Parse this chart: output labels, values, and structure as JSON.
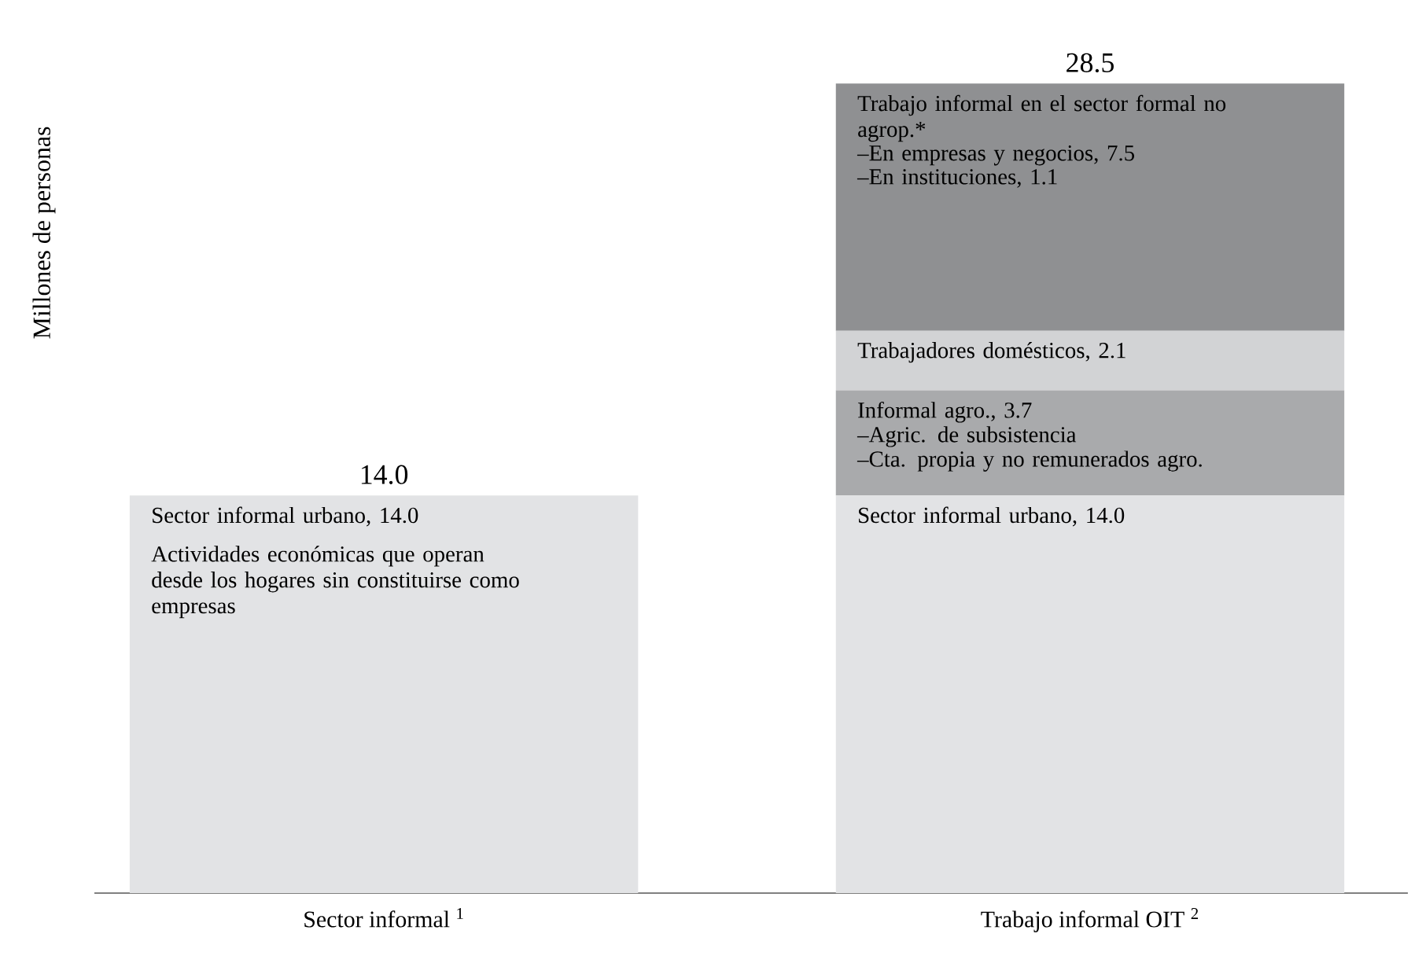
{
  "chart_data": {
    "type": "bar",
    "stacked": true,
    "ylabel": "Millones de personas",
    "categories": [
      "Sector informal $^{1}$",
      "Trabajo informal OIT $^{2}$"
    ],
    "series": [
      {
        "color": "#e2e3e5",
        "values": [
          14.0,
          14.0
        ],
        "value_labels": [
          "Sector informal urbano, 14.0",
          "Sector informal urbano, 14.0"
        ]
      },
      {
        "color": "#a9aaac",
        "values": [
          null,
          3.7
        ],
        "value_labels": [
          null,
          "Informal agro., 3.7"
        ]
      },
      {
        "color": "#d2d3d5",
        "values": [
          null,
          2.1
        ],
        "value_labels": [
          null,
          "Trabajadores domésticos, 2.1"
        ]
      },
      {
        "color": "#8f9092",
        "values": [
          null,
          8.7
        ],
        "value_labels": [
          null,
          "Trabajo informal en el sector formal no agrop.*"
        ]
      }
    ],
    "totals": [
      "14.0",
      "28.5"
    ],
    "annotations": [
      "Actividades económicas que operan desde los hogares sin constituirse como empresas",
      "–Agric. de subsistencia",
      "–Cta. propia y no remunerados agro.",
      "–En empresas y negocios, 7.5",
      "–En instituciones, 1.1"
    ],
    "tick_labels": "x"
  }
}
